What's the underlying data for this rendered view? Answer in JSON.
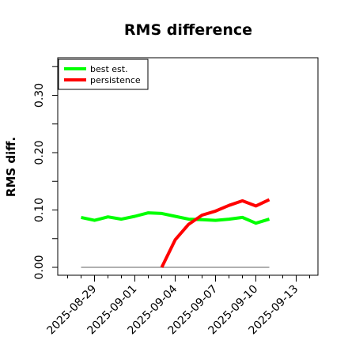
{
  "chart_data": {
    "type": "line",
    "title": "RMS difference",
    "xlabel": "",
    "ylabel": "RMS diff.",
    "x_ticks": [
      "2025-08-29",
      "2025-09-01",
      "2025-09-04",
      "2025-09-07",
      "2025-09-10",
      "2025-09-13"
    ],
    "y_ticks": [
      "0.00",
      "0.10",
      "0.20",
      "0.30"
    ],
    "ylim": [
      -0.01,
      0.37
    ],
    "grid": false,
    "legend": "top-left",
    "reference_line": {
      "y": 0.0,
      "x_start": "2025-08-28",
      "x_end": "2025-09-11",
      "color": "#808080"
    },
    "series": [
      {
        "name": "best est.",
        "color": "#00ff00",
        "points": [
          [
            "2025-08-28",
            0.087
          ],
          [
            "2025-08-29",
            0.082
          ],
          [
            "2025-08-30",
            0.088
          ],
          [
            "2025-08-31",
            0.084
          ],
          [
            "2025-09-01",
            0.089
          ],
          [
            "2025-09-02",
            0.095
          ],
          [
            "2025-09-03",
            0.094
          ],
          [
            "2025-09-04",
            0.089
          ],
          [
            "2025-09-05",
            0.084
          ],
          [
            "2025-09-06",
            0.083
          ],
          [
            "2025-09-07",
            0.082
          ],
          [
            "2025-09-08",
            0.084
          ],
          [
            "2025-09-09",
            0.087
          ],
          [
            "2025-09-10",
            0.077
          ],
          [
            "2025-09-11",
            0.084
          ]
        ]
      },
      {
        "name": "persistence",
        "color": "#ff0000",
        "points": [
          [
            "2025-09-03",
            0.0
          ],
          [
            "2025-09-04",
            0.048
          ],
          [
            "2025-09-05",
            0.075
          ],
          [
            "2025-09-06",
            0.091
          ],
          [
            "2025-09-07",
            0.098
          ],
          [
            "2025-09-08",
            0.108
          ],
          [
            "2025-09-09",
            0.116
          ],
          [
            "2025-09-10",
            0.107
          ],
          [
            "2025-09-11",
            0.118
          ]
        ]
      }
    ]
  }
}
